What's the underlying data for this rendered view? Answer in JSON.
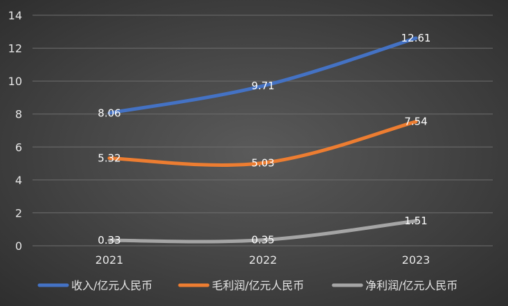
{
  "chart_data": {
    "type": "line",
    "title": "",
    "xlabel": "",
    "ylabel": "",
    "categories": [
      "2021",
      "2022",
      "2023"
    ],
    "ylim": [
      0,
      14
    ],
    "yticks": [
      "0",
      "2",
      "4",
      "6",
      "8",
      "10",
      "12",
      "14"
    ],
    "grid": true,
    "legend_position": "bottom",
    "series": [
      {
        "name": "收入/亿元人民币",
        "values": [
          8.06,
          9.71,
          12.61
        ],
        "labels": [
          "8.06",
          "9.71",
          "12.61"
        ],
        "color": "#4472C4"
      },
      {
        "name": "毛利润/亿元人民币",
        "values": [
          5.32,
          5.03,
          7.54
        ],
        "labels": [
          "5.32",
          "5.03",
          "7.54"
        ],
        "color": "#ED7D31"
      },
      {
        "name": "净利润/亿元人民币",
        "values": [
          0.33,
          0.35,
          1.51
        ],
        "labels": [
          "0.33",
          "0.35",
          "1.51"
        ],
        "color": "#A5A5A5"
      }
    ]
  }
}
